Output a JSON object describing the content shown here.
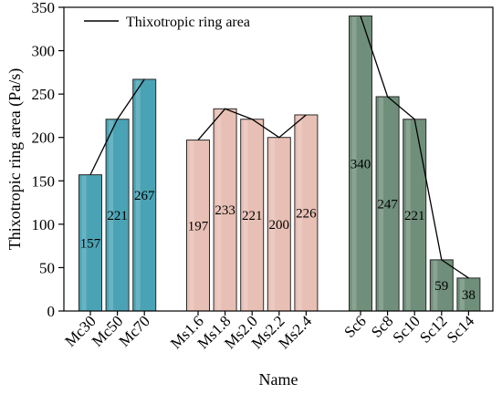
{
  "chart_data": {
    "type": "bar",
    "xlabel": "Name",
    "ylabel": "Thixotropic ring area (Pa/s)",
    "ylim": [
      0,
      350
    ],
    "yticks": [
      0,
      50,
      100,
      150,
      200,
      250,
      300,
      350
    ],
    "grid": false,
    "legend": {
      "position": "top-left",
      "entries": [
        {
          "label": "Thixotropic ring area",
          "marker": "line"
        }
      ]
    },
    "groups": [
      {
        "name": "Mc",
        "color": "#4aa3b5",
        "categories": [
          "Mc30",
          "Mc50",
          "Mc70"
        ],
        "values": [
          157,
          221,
          267
        ]
      },
      {
        "name": "Ms",
        "color": "#e8bfb4",
        "categories": [
          "Ms1.6",
          "Ms1.8",
          "Ms2.0",
          "Ms2.2",
          "Ms2.4"
        ],
        "values": [
          197,
          233,
          221,
          200,
          226
        ]
      },
      {
        "name": "Sc",
        "color": "#6f8f7a",
        "categories": [
          "Sc6",
          "Sc8",
          "Sc10",
          "Sc12",
          "Sc14"
        ],
        "values": [
          340,
          247,
          221,
          59,
          38
        ]
      }
    ],
    "line_series": {
      "name": "Thixotropic ring area",
      "connects_within_groups": true
    }
  }
}
